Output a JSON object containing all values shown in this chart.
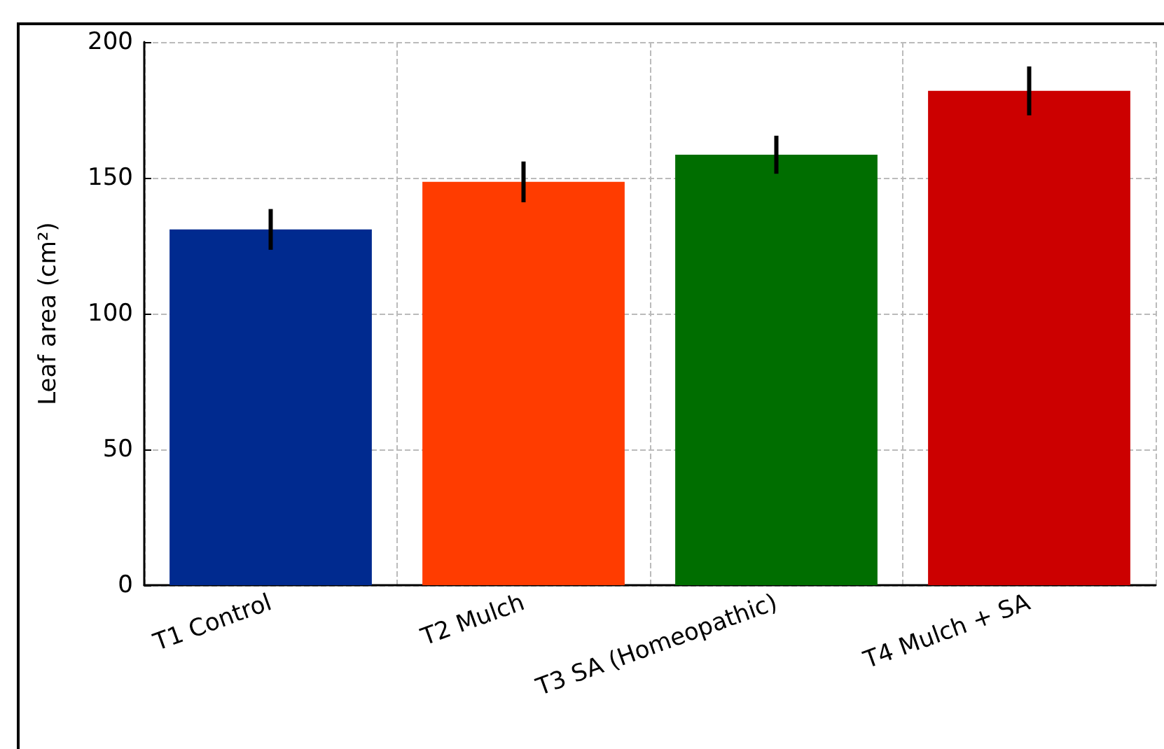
{
  "chart_data": {
    "type": "bar",
    "ylabel": "Leaf area (cm²)",
    "categories": [
      "T1 Control",
      "T2 Mulch",
      "T3 SA (Homeopathic)",
      "T4 Mulch + SA"
    ],
    "values": [
      131,
      148.5,
      158.5,
      182
    ],
    "colors": [
      "#002a8f",
      "#ff3c00",
      "#006e00",
      "#cc0000"
    ],
    "errors": [
      7.5,
      7.5,
      7,
      9
    ],
    "ylim": [
      0,
      200
    ],
    "yticks": [
      0,
      50,
      100,
      150,
      200
    ],
    "grid": true
  }
}
